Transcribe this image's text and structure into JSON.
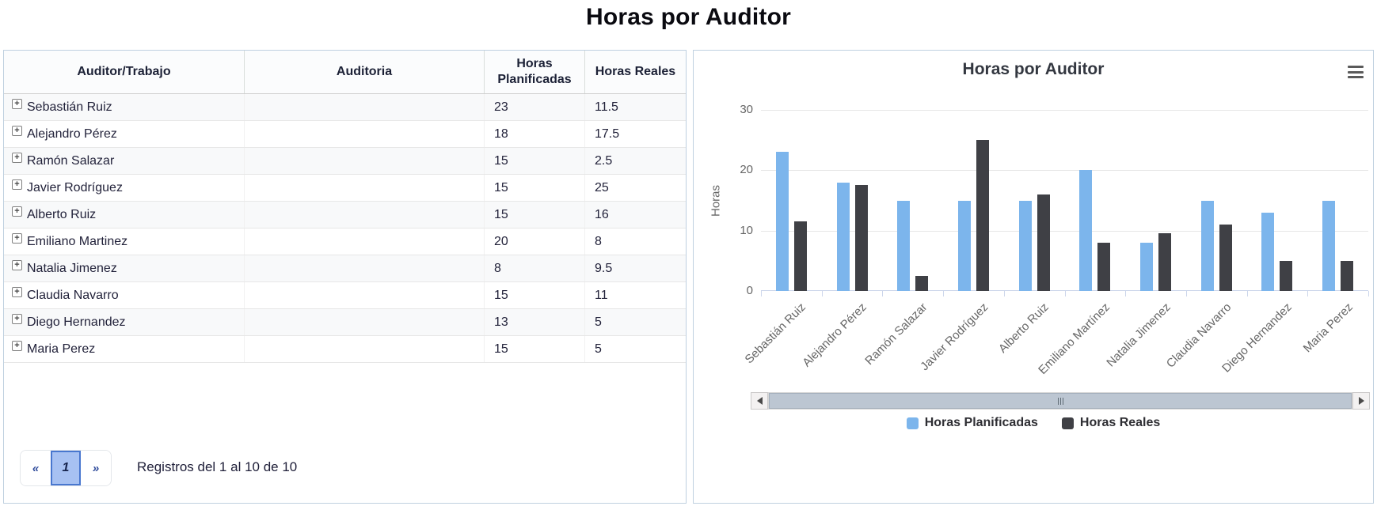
{
  "page": {
    "title": "Horas por Auditor"
  },
  "table": {
    "headers": [
      "Auditor/Trabajo",
      "Auditoria",
      "Horas Planificadas",
      "Horas Reales"
    ],
    "rows": [
      {
        "auditor": "Sebastián Ruiz",
        "auditoria": "",
        "horas_planificadas": "23",
        "horas_reales": "11.5"
      },
      {
        "auditor": "Alejandro Pérez",
        "auditoria": "",
        "horas_planificadas": "18",
        "horas_reales": "17.5"
      },
      {
        "auditor": "Ramón Salazar",
        "auditoria": "",
        "horas_planificadas": "15",
        "horas_reales": "2.5"
      },
      {
        "auditor": "Javier Rodríguez",
        "auditoria": "",
        "horas_planificadas": "15",
        "horas_reales": "25"
      },
      {
        "auditor": "Alberto Ruiz",
        "auditoria": "",
        "horas_planificadas": "15",
        "horas_reales": "16"
      },
      {
        "auditor": "Emiliano Martinez",
        "auditoria": "",
        "horas_planificadas": "20",
        "horas_reales": "8"
      },
      {
        "auditor": "Natalia Jimenez",
        "auditoria": "",
        "horas_planificadas": "8",
        "horas_reales": "9.5"
      },
      {
        "auditor": "Claudia Navarro",
        "auditoria": "",
        "horas_planificadas": "15",
        "horas_reales": "11"
      },
      {
        "auditor": "Diego Hernandez",
        "auditoria": "",
        "horas_planificadas": "13",
        "horas_reales": "5"
      },
      {
        "auditor": "Maria Perez",
        "auditoria": "",
        "horas_planificadas": "15",
        "horas_reales": "5"
      }
    ]
  },
  "pagination": {
    "prev_label": "«",
    "current_page": "1",
    "next_label": "»",
    "summary": "Registros del 1 al 10 de 10"
  },
  "chart_data": {
    "type": "bar",
    "title": "Horas por Auditor",
    "categories": [
      "Sebastián Ruiz",
      "Alejandro Pérez",
      "Ramón Salazar",
      "Javier Rodríguez",
      "Alberto Ruiz",
      "Emiliano Martínez",
      "Natalia Jimenez",
      "Claudia Navarro",
      "Diego Hernandez",
      "Maria Perez"
    ],
    "series": [
      {
        "name": "Horas Planificadas",
        "color": "#7CB5EC",
        "values": [
          23,
          18,
          15,
          15,
          15,
          20,
          8,
          15,
          13,
          15
        ]
      },
      {
        "name": "Horas Reales",
        "color": "#3F4045",
        "values": [
          11.5,
          17.5,
          2.5,
          25,
          16,
          8,
          9.5,
          11,
          5,
          5
        ]
      }
    ],
    "ylabel": "Horas",
    "yticks": [
      0,
      10,
      20,
      30
    ],
    "ylim": [
      0,
      30
    ],
    "grid": true,
    "legend_position": "bottom"
  },
  "icons": {
    "expand": "+"
  },
  "colors": {
    "panel_border": "#BFD0E0",
    "pagination_active_bg": "#A7C1F2",
    "pagination_active_border": "#4877CF",
    "pagination_arrow": "#2F4B9B",
    "axis_text": "#666666",
    "axis_line": "#CCD6EB"
  }
}
